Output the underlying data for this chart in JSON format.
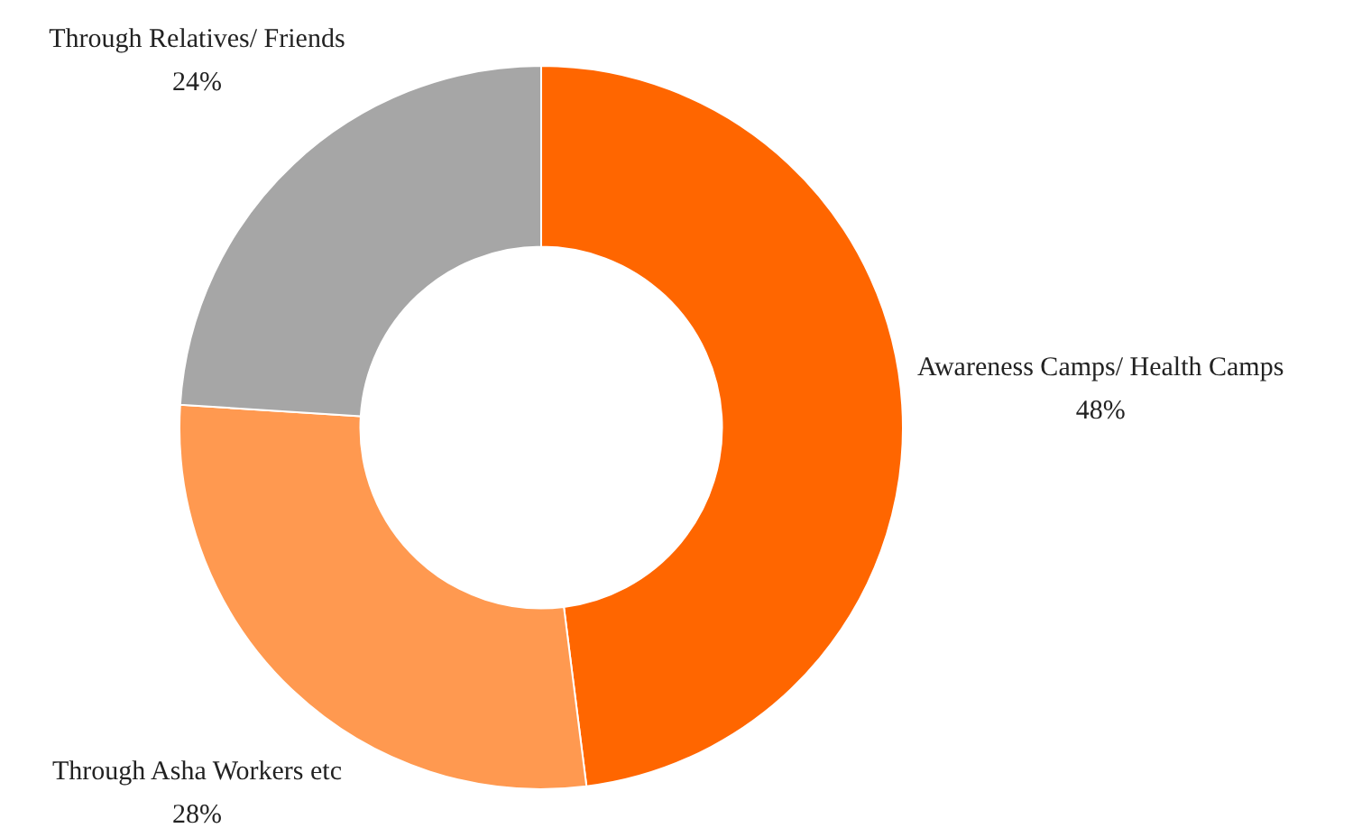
{
  "chart_data": {
    "type": "donut",
    "categories": [
      "Awareness Camps/ Health Camps",
      "Through Asha Workers etc",
      "Through Relatives/ Friends"
    ],
    "values": [
      48,
      28,
      24
    ],
    "colors": [
      "#ff6600",
      "#ff9950",
      "#a6a6a6"
    ],
    "value_labels": [
      "48%",
      "28%",
      "24%"
    ],
    "legend": false
  }
}
